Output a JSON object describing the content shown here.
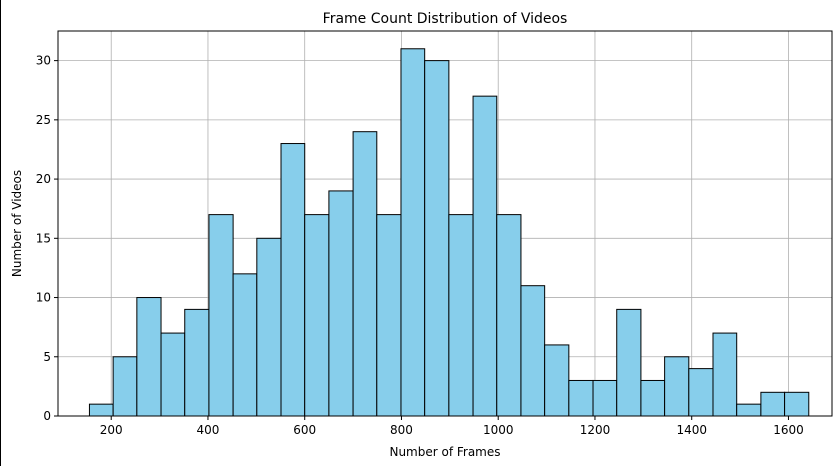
{
  "chart_data": {
    "type": "bar",
    "title": "Frame Count Distribution of Videos",
    "xlabel": "Number of Frames",
    "ylabel": "Number of Videos",
    "xlim": [
      90,
      1690
    ],
    "ylim": [
      0,
      32.5
    ],
    "xticks": [
      200,
      400,
      600,
      800,
      1000,
      1200,
      1400,
      1600
    ],
    "yticks": [
      0,
      5,
      10,
      15,
      20,
      25,
      30
    ],
    "grid": true,
    "bar_color": "#87ceeb",
    "edge_color": "#000000",
    "bins": [
      {
        "x0": 155,
        "x1": 204,
        "value": 1
      },
      {
        "x0": 204,
        "x1": 253,
        "value": 5
      },
      {
        "x0": 253,
        "x1": 303,
        "value": 10
      },
      {
        "x0": 303,
        "x1": 352,
        "value": 7
      },
      {
        "x0": 352,
        "x1": 402,
        "value": 9
      },
      {
        "x0": 402,
        "x1": 452,
        "value": 17
      },
      {
        "x0": 452,
        "x1": 501,
        "value": 12
      },
      {
        "x0": 501,
        "x1": 551,
        "value": 15
      },
      {
        "x0": 551,
        "x1": 600,
        "value": 23
      },
      {
        "x0": 600,
        "x1": 650,
        "value": 17
      },
      {
        "x0": 650,
        "x1": 700,
        "value": 19
      },
      {
        "x0": 700,
        "x1": 749,
        "value": 24
      },
      {
        "x0": 749,
        "x1": 799,
        "value": 17
      },
      {
        "x0": 799,
        "x1": 848,
        "value": 31
      },
      {
        "x0": 848,
        "x1": 898,
        "value": 30
      },
      {
        "x0": 898,
        "x1": 948,
        "value": 17
      },
      {
        "x0": 948,
        "x1": 997,
        "value": 27
      },
      {
        "x0": 997,
        "x1": 1047,
        "value": 17
      },
      {
        "x0": 1047,
        "x1": 1096,
        "value": 11
      },
      {
        "x0": 1096,
        "x1": 1146,
        "value": 6
      },
      {
        "x0": 1146,
        "x1": 1196,
        "value": 3
      },
      {
        "x0": 1196,
        "x1": 1245,
        "value": 3
      },
      {
        "x0": 1245,
        "x1": 1295,
        "value": 9
      },
      {
        "x0": 1295,
        "x1": 1344,
        "value": 3
      },
      {
        "x0": 1344,
        "x1": 1394,
        "value": 5
      },
      {
        "x0": 1394,
        "x1": 1444,
        "value": 4
      },
      {
        "x0": 1444,
        "x1": 1493,
        "value": 7
      },
      {
        "x0": 1493,
        "x1": 1543,
        "value": 1
      },
      {
        "x0": 1543,
        "x1": 1592,
        "value": 2
      },
      {
        "x0": 1592,
        "x1": 1642,
        "value": 2
      }
    ]
  }
}
